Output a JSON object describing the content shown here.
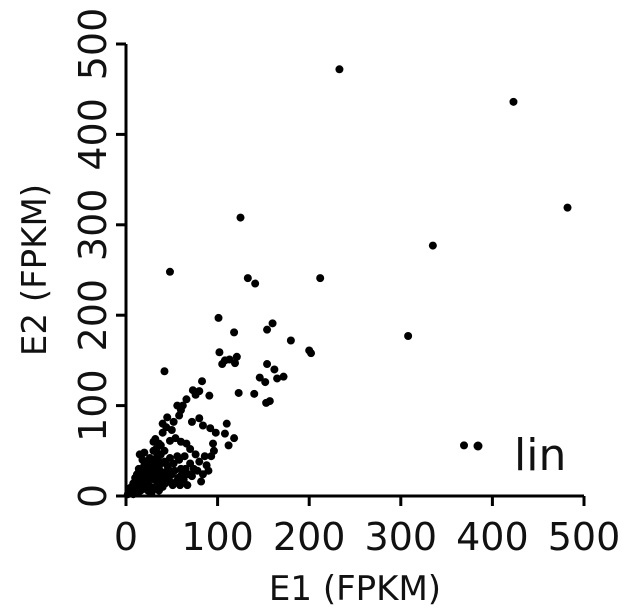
{
  "chart_data": {
    "type": "scatter",
    "xlabel": "E1 (FPKM)",
    "ylabel": "E2 (FPKM)",
    "xlim": [
      0,
      500
    ],
    "ylim": [
      0,
      500
    ],
    "x_ticks": [
      0,
      100,
      200,
      300,
      400,
      500
    ],
    "y_ticks": [
      0,
      100,
      200,
      300,
      400,
      500
    ],
    "grid": false,
    "legend_position": "bottom-right",
    "series": [
      {
        "name": "lin",
        "color": "#000000",
        "points": [
          [
            233,
            472
          ],
          [
            423,
            436
          ],
          [
            482,
            319
          ],
          [
            125,
            308
          ],
          [
            335,
            277
          ],
          [
            212,
            241
          ],
          [
            133,
            241
          ],
          [
            141,
            235
          ],
          [
            48,
            248
          ],
          [
            308,
            177
          ],
          [
            101,
            197
          ],
          [
            160,
            191
          ],
          [
            118,
            181
          ],
          [
            154,
            184
          ],
          [
            180,
            172
          ],
          [
            202,
            158
          ],
          [
            200,
            161
          ],
          [
            121,
            154
          ],
          [
            108,
            150
          ],
          [
            113,
            151
          ],
          [
            119,
            147
          ],
          [
            102,
            159
          ],
          [
            105,
            146
          ],
          [
            154,
            146
          ],
          [
            162,
            140
          ],
          [
            165,
            130
          ],
          [
            146,
            131
          ],
          [
            152,
            126
          ],
          [
            172,
            132
          ],
          [
            140,
            113
          ],
          [
            157,
            105
          ],
          [
            153,
            103
          ],
          [
            123,
            114
          ],
          [
            42,
            138
          ],
          [
            83,
            127
          ],
          [
            80,
            116
          ],
          [
            73,
            117
          ],
          [
            76,
            112
          ],
          [
            91,
            111
          ],
          [
            66,
            107
          ],
          [
            62,
            100
          ],
          [
            56,
            100
          ],
          [
            80,
            86
          ],
          [
            84,
            78
          ],
          [
            72,
            82
          ],
          [
            92,
            75
          ],
          [
            98,
            70
          ],
          [
            108,
            69
          ],
          [
            110,
            80
          ],
          [
            118,
            64
          ],
          [
            112,
            56
          ],
          [
            96,
            50
          ],
          [
            93,
            44
          ],
          [
            60,
            95
          ],
          [
            58,
            89
          ],
          [
            52,
            82
          ],
          [
            45,
            87
          ],
          [
            40,
            80
          ],
          [
            44,
            76
          ],
          [
            50,
            73
          ],
          [
            54,
            64
          ],
          [
            48,
            61
          ],
          [
            40,
            70
          ],
          [
            32,
            63
          ],
          [
            60,
            60
          ],
          [
            66,
            58
          ],
          [
            70,
            52
          ],
          [
            76,
            46
          ],
          [
            64,
            44
          ],
          [
            58,
            40
          ],
          [
            80,
            38
          ],
          [
            88,
            34
          ],
          [
            84,
            24
          ],
          [
            72,
            22
          ],
          [
            60,
            30
          ],
          [
            52,
            36
          ],
          [
            45,
            34
          ],
          [
            42,
            50
          ],
          [
            38,
            56
          ],
          [
            34,
            44
          ],
          [
            30,
            50
          ],
          [
            28,
            40
          ],
          [
            24,
            36
          ],
          [
            20,
            48
          ],
          [
            18,
            40
          ],
          [
            15,
            46
          ],
          [
            14,
            30
          ],
          [
            12,
            24
          ],
          [
            10,
            20
          ],
          [
            8,
            14
          ],
          [
            6,
            10
          ],
          [
            5,
            6
          ],
          [
            4,
            3
          ],
          [
            3,
            8
          ],
          [
            2,
            2
          ],
          [
            9,
            6
          ],
          [
            11,
            12
          ],
          [
            13,
            8
          ],
          [
            16,
            18
          ],
          [
            18,
            12
          ],
          [
            20,
            16
          ],
          [
            22,
            22
          ],
          [
            24,
            14
          ],
          [
            25,
            26
          ],
          [
            27,
            10
          ],
          [
            28,
            20
          ],
          [
            30,
            28
          ],
          [
            31,
            18
          ],
          [
            33,
            24
          ],
          [
            34,
            12
          ],
          [
            36,
            30
          ],
          [
            37,
            20
          ],
          [
            38,
            36
          ],
          [
            39,
            16
          ],
          [
            41,
            26
          ],
          [
            42,
            38
          ],
          [
            43,
            14
          ],
          [
            44,
            22
          ],
          [
            46,
            30
          ],
          [
            47,
            18
          ],
          [
            48,
            42
          ],
          [
            50,
            24
          ],
          [
            51,
            12
          ],
          [
            53,
            28
          ],
          [
            55,
            16
          ],
          [
            56,
            44
          ],
          [
            57,
            20
          ],
          [
            59,
            12
          ],
          [
            61,
            24
          ],
          [
            63,
            18
          ],
          [
            65,
            30
          ],
          [
            67,
            12
          ],
          [
            68,
            24
          ],
          [
            70,
            36
          ],
          [
            74,
            30
          ],
          [
            78,
            28
          ],
          [
            82,
            16
          ],
          [
            86,
            44
          ],
          [
            90,
            28
          ],
          [
            95,
            58
          ],
          [
            26,
            32
          ],
          [
            23,
            28
          ],
          [
            21,
            30
          ],
          [
            19,
            22
          ],
          [
            17,
            26
          ],
          [
            15,
            14
          ],
          [
            13,
            16
          ],
          [
            11,
            18
          ],
          [
            9,
            12
          ],
          [
            7,
            8
          ],
          [
            6,
            4
          ],
          [
            8,
            2
          ],
          [
            12,
            4
          ],
          [
            16,
            6
          ],
          [
            20,
            8
          ],
          [
            24,
            6
          ],
          [
            28,
            4
          ],
          [
            32,
            8
          ],
          [
            36,
            6
          ],
          [
            40,
            10
          ],
          [
            29,
            34
          ],
          [
            32,
            36
          ],
          [
            35,
            40
          ],
          [
            38,
            46
          ],
          [
            26,
            42
          ],
          [
            22,
            38
          ],
          [
            20,
            34
          ],
          [
            33,
            52
          ],
          [
            36,
            58
          ],
          [
            30,
            60
          ],
          [
            369,
            56
          ]
        ]
      }
    ]
  }
}
